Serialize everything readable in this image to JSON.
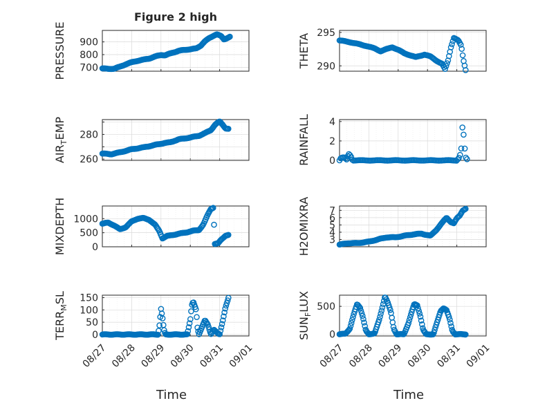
{
  "figure_title": "Figure 2 high",
  "chart_data": [
    {
      "type": "scatter",
      "panel": "pressure",
      "title": "Figure 2 high",
      "ylabel_main": "PRESSURE",
      "ylabel_sub": "",
      "xlim": [
        0,
        5
      ],
      "ylim": [
        670,
        990
      ],
      "yticks": [
        700,
        800,
        900
      ],
      "yticklabels": [
        "700",
        "800",
        "900"
      ],
      "keypoints": [
        [
          0,
          692
        ],
        [
          0.2,
          688
        ],
        [
          0.4,
          690
        ],
        [
          0.6,
          705
        ],
        [
          0.8,
          725
        ],
        [
          1.0,
          740
        ],
        [
          1.2,
          752
        ],
        [
          1.4,
          760
        ],
        [
          1.6,
          770
        ],
        [
          1.8,
          785
        ],
        [
          2.0,
          798
        ],
        [
          2.15,
          795
        ],
        [
          2.3,
          808
        ],
        [
          2.6,
          830
        ],
        [
          2.9,
          840
        ],
        [
          3.2,
          848
        ],
        [
          3.35,
          870
        ],
        [
          3.5,
          905
        ],
        [
          3.65,
          930
        ],
        [
          3.8,
          950
        ],
        [
          3.9,
          960
        ],
        [
          4.05,
          945
        ],
        [
          4.15,
          920
        ],
        [
          4.25,
          930
        ],
        [
          4.35,
          940
        ]
      ],
      "count": 150
    },
    {
      "type": "scatter",
      "panel": "theta",
      "ylabel_main": "THETA",
      "ylabel_sub": "",
      "xlim": [
        0,
        5
      ],
      "ylim": [
        289.2,
        295.3
      ],
      "yticks": [
        290,
        295
      ],
      "yticklabels": [
        "290",
        "295"
      ],
      "keypoints": [
        [
          0,
          293.8
        ],
        [
          0.3,
          293.6
        ],
        [
          0.6,
          293.3
        ],
        [
          0.9,
          293.0
        ],
        [
          1.2,
          292.6
        ],
        [
          1.4,
          292.2
        ],
        [
          1.6,
          292.5
        ],
        [
          1.8,
          292.8
        ],
        [
          2.0,
          292.4
        ],
        [
          2.2,
          291.9
        ],
        [
          2.4,
          291.6
        ],
        [
          2.6,
          291.3
        ],
        [
          2.9,
          291.7
        ],
        [
          3.1,
          291.4
        ],
        [
          3.3,
          290.8
        ],
        [
          3.5,
          290.3
        ],
        [
          3.6,
          289.5
        ],
        [
          3.7,
          290.8
        ],
        [
          3.8,
          292.8
        ],
        [
          3.9,
          294.2
        ],
        [
          4.05,
          293.8
        ],
        [
          4.15,
          293.0
        ],
        [
          4.22,
          291.0
        ],
        [
          4.3,
          289.4
        ]
      ],
      "count": 130
    },
    {
      "type": "scatter",
      "panel": "air_temp",
      "ylabel_main": "AIR",
      "ylabel_sub": "T",
      "ylabel_rest": "EMP",
      "xlim": [
        0,
        5
      ],
      "ylim": [
        259,
        292
      ],
      "yticks": [
        260,
        270,
        280,
        290
      ],
      "yticklabels": [
        "260",
        "",
        "280",
        ""
      ],
      "keypoints": [
        [
          0,
          264.5
        ],
        [
          0.3,
          264
        ],
        [
          0.6,
          265.5
        ],
        [
          1.0,
          268
        ],
        [
          1.4,
          269.5
        ],
        [
          1.8,
          271.5
        ],
        [
          2.1,
          273
        ],
        [
          2.3,
          273.5
        ],
        [
          2.6,
          276
        ],
        [
          3.0,
          277.5
        ],
        [
          3.3,
          279
        ],
        [
          3.5,
          281
        ],
        [
          3.7,
          283.5
        ],
        [
          3.85,
          288
        ],
        [
          4.0,
          290.5
        ],
        [
          4.1,
          288
        ],
        [
          4.2,
          285
        ],
        [
          4.3,
          284.5
        ]
      ],
      "count": 150
    },
    {
      "type": "scatter",
      "panel": "rainfall",
      "ylabel_main": "RAINFALL",
      "ylabel_sub": "",
      "xlim": [
        0,
        5
      ],
      "ylim": [
        0,
        4.2
      ],
      "yticks": [
        0,
        2,
        4
      ],
      "yticklabels": [
        "0",
        "2",
        "4"
      ],
      "keypoints": [
        [
          0,
          0
        ],
        [
          0.05,
          0.25
        ],
        [
          0.15,
          0.3
        ],
        [
          0.25,
          0.05
        ],
        [
          0.3,
          0.7
        ],
        [
          0.38,
          0.5
        ],
        [
          0.45,
          0
        ],
        [
          4.0,
          0
        ],
        [
          4.1,
          0.4
        ],
        [
          4.15,
          1.2
        ],
        [
          4.2,
          3.9
        ],
        [
          4.25,
          1.8
        ],
        [
          4.3,
          0.3
        ],
        [
          4.35,
          0.1
        ]
      ],
      "count": 110
    },
    {
      "type": "scatter",
      "panel": "mixdepth",
      "ylabel_main": "MIXDEPTH",
      "ylabel_sub": "",
      "xlim": [
        0,
        5
      ],
      "ylim": [
        0,
        1450
      ],
      "yticks": [
        0,
        500,
        1000
      ],
      "yticklabels": [
        "0",
        "500",
        "1000"
      ],
      "keypoints": [
        [
          0,
          820
        ],
        [
          0.2,
          860
        ],
        [
          0.4,
          760
        ],
        [
          0.6,
          620
        ],
        [
          0.8,
          700
        ],
        [
          1.0,
          900
        ],
        [
          1.2,
          1000
        ],
        [
          1.4,
          1020
        ],
        [
          1.6,
          960
        ],
        [
          1.8,
          780
        ],
        [
          1.95,
          550
        ],
        [
          2.05,
          300
        ],
        [
          2.2,
          380
        ],
        [
          2.4,
          420
        ],
        [
          2.6,
          460
        ],
        [
          2.9,
          520
        ],
        [
          3.1,
          570
        ],
        [
          3.3,
          600
        ],
        [
          3.45,
          800
        ],
        [
          3.6,
          1150
        ],
        [
          3.7,
          1350
        ],
        [
          3.8,
          1400
        ],
        [
          3.82,
          100
        ],
        [
          3.95,
          120
        ],
        [
          4.05,
          250
        ],
        [
          4.2,
          400
        ],
        [
          4.3,
          420
        ]
      ],
      "count": 150
    },
    {
      "type": "scatter",
      "panel": "h2omixra",
      "ylabel_main": "H2OMIXRA",
      "ylabel_sub": "",
      "xlim": [
        0,
        5
      ],
      "ylim": [
        2,
        7.6
      ],
      "yticks": [
        3,
        4,
        5,
        6,
        7
      ],
      "yticklabels": [
        "3",
        "4",
        "5",
        "6",
        "7"
      ],
      "keypoints": [
        [
          0,
          2.3
        ],
        [
          0.3,
          2.5
        ],
        [
          0.6,
          2.5
        ],
        [
          1.0,
          2.7
        ],
        [
          1.3,
          3.0
        ],
        [
          1.6,
          3.3
        ],
        [
          1.9,
          3.3
        ],
        [
          2.2,
          3.5
        ],
        [
          2.5,
          3.7
        ],
        [
          2.8,
          3.8
        ],
        [
          3.1,
          3.5
        ],
        [
          3.3,
          4.3
        ],
        [
          3.5,
          5.3
        ],
        [
          3.65,
          6.0
        ],
        [
          3.8,
          5.4
        ],
        [
          3.9,
          5.2
        ],
        [
          4.0,
          5.9
        ],
        [
          4.1,
          6.3
        ],
        [
          4.2,
          7.0
        ],
        [
          4.3,
          7.2
        ]
      ],
      "count": 150
    },
    {
      "type": "scatter",
      "panel": "terr_msl",
      "ylabel_main": "TERR",
      "ylabel_sub": "M",
      "ylabel_rest": "SL",
      "xlim": [
        0,
        5
      ],
      "ylim": [
        -6,
        160
      ],
      "yticks": [
        0,
        50,
        100,
        150
      ],
      "yticklabels": [
        "0",
        "50",
        "100",
        "150"
      ],
      "keypoints": [
        [
          0,
          0
        ],
        [
          1.9,
          0
        ],
        [
          1.95,
          40
        ],
        [
          2.0,
          105
        ],
        [
          2.05,
          70
        ],
        [
          2.1,
          20
        ],
        [
          2.15,
          0
        ],
        [
          2.9,
          0
        ],
        [
          3.0,
          60
        ],
        [
          3.05,
          120
        ],
        [
          3.1,
          135
        ],
        [
          3.2,
          100
        ],
        [
          3.25,
          20
        ],
        [
          3.3,
          0
        ],
        [
          3.5,
          60
        ],
        [
          3.6,
          40
        ],
        [
          3.7,
          0
        ],
        [
          3.8,
          20
        ],
        [
          3.9,
          10
        ],
        [
          4.0,
          0
        ],
        [
          4.1,
          50
        ],
        [
          4.2,
          110
        ],
        [
          4.3,
          150
        ]
      ],
      "count": 160
    },
    {
      "type": "scatter",
      "panel": "sun_flux",
      "ylabel_main": "SUN",
      "ylabel_sub": "F",
      "ylabel_rest": "LUX",
      "xlim": [
        0,
        5
      ],
      "ylim": [
        -30,
        700
      ],
      "yticks": [
        0,
        500
      ],
      "yticklabels": [
        "0",
        "500"
      ],
      "keypoints": [
        [
          0,
          0
        ],
        [
          0.2,
          10
        ],
        [
          0.35,
          100
        ],
        [
          0.5,
          380
        ],
        [
          0.6,
          540
        ],
        [
          0.7,
          480
        ],
        [
          0.8,
          300
        ],
        [
          0.9,
          60
        ],
        [
          1.0,
          0
        ],
        [
          1.2,
          20
        ],
        [
          1.35,
          250
        ],
        [
          1.45,
          460
        ],
        [
          1.55,
          680
        ],
        [
          1.65,
          560
        ],
        [
          1.75,
          400
        ],
        [
          1.85,
          100
        ],
        [
          1.95,
          0
        ],
        [
          2.2,
          0
        ],
        [
          2.35,
          200
        ],
        [
          2.45,
          380
        ],
        [
          2.55,
          540
        ],
        [
          2.65,
          520
        ],
        [
          2.75,
          340
        ],
        [
          2.85,
          80
        ],
        [
          2.95,
          0
        ],
        [
          3.2,
          0
        ],
        [
          3.35,
          250
        ],
        [
          3.45,
          420
        ],
        [
          3.55,
          470
        ],
        [
          3.65,
          430
        ],
        [
          3.75,
          280
        ],
        [
          3.85,
          60
        ],
        [
          3.95,
          0
        ],
        [
          4.3,
          0
        ]
      ],
      "count": 160
    }
  ],
  "xticklabels": [
    "08/27",
    "08/28",
    "08/29",
    "08/30",
    "08/31",
    "09/01"
  ],
  "xlabel": "Time",
  "colors": {
    "marker": "#0072BD",
    "axes": "#262626",
    "grid": "#d9d9d9"
  }
}
